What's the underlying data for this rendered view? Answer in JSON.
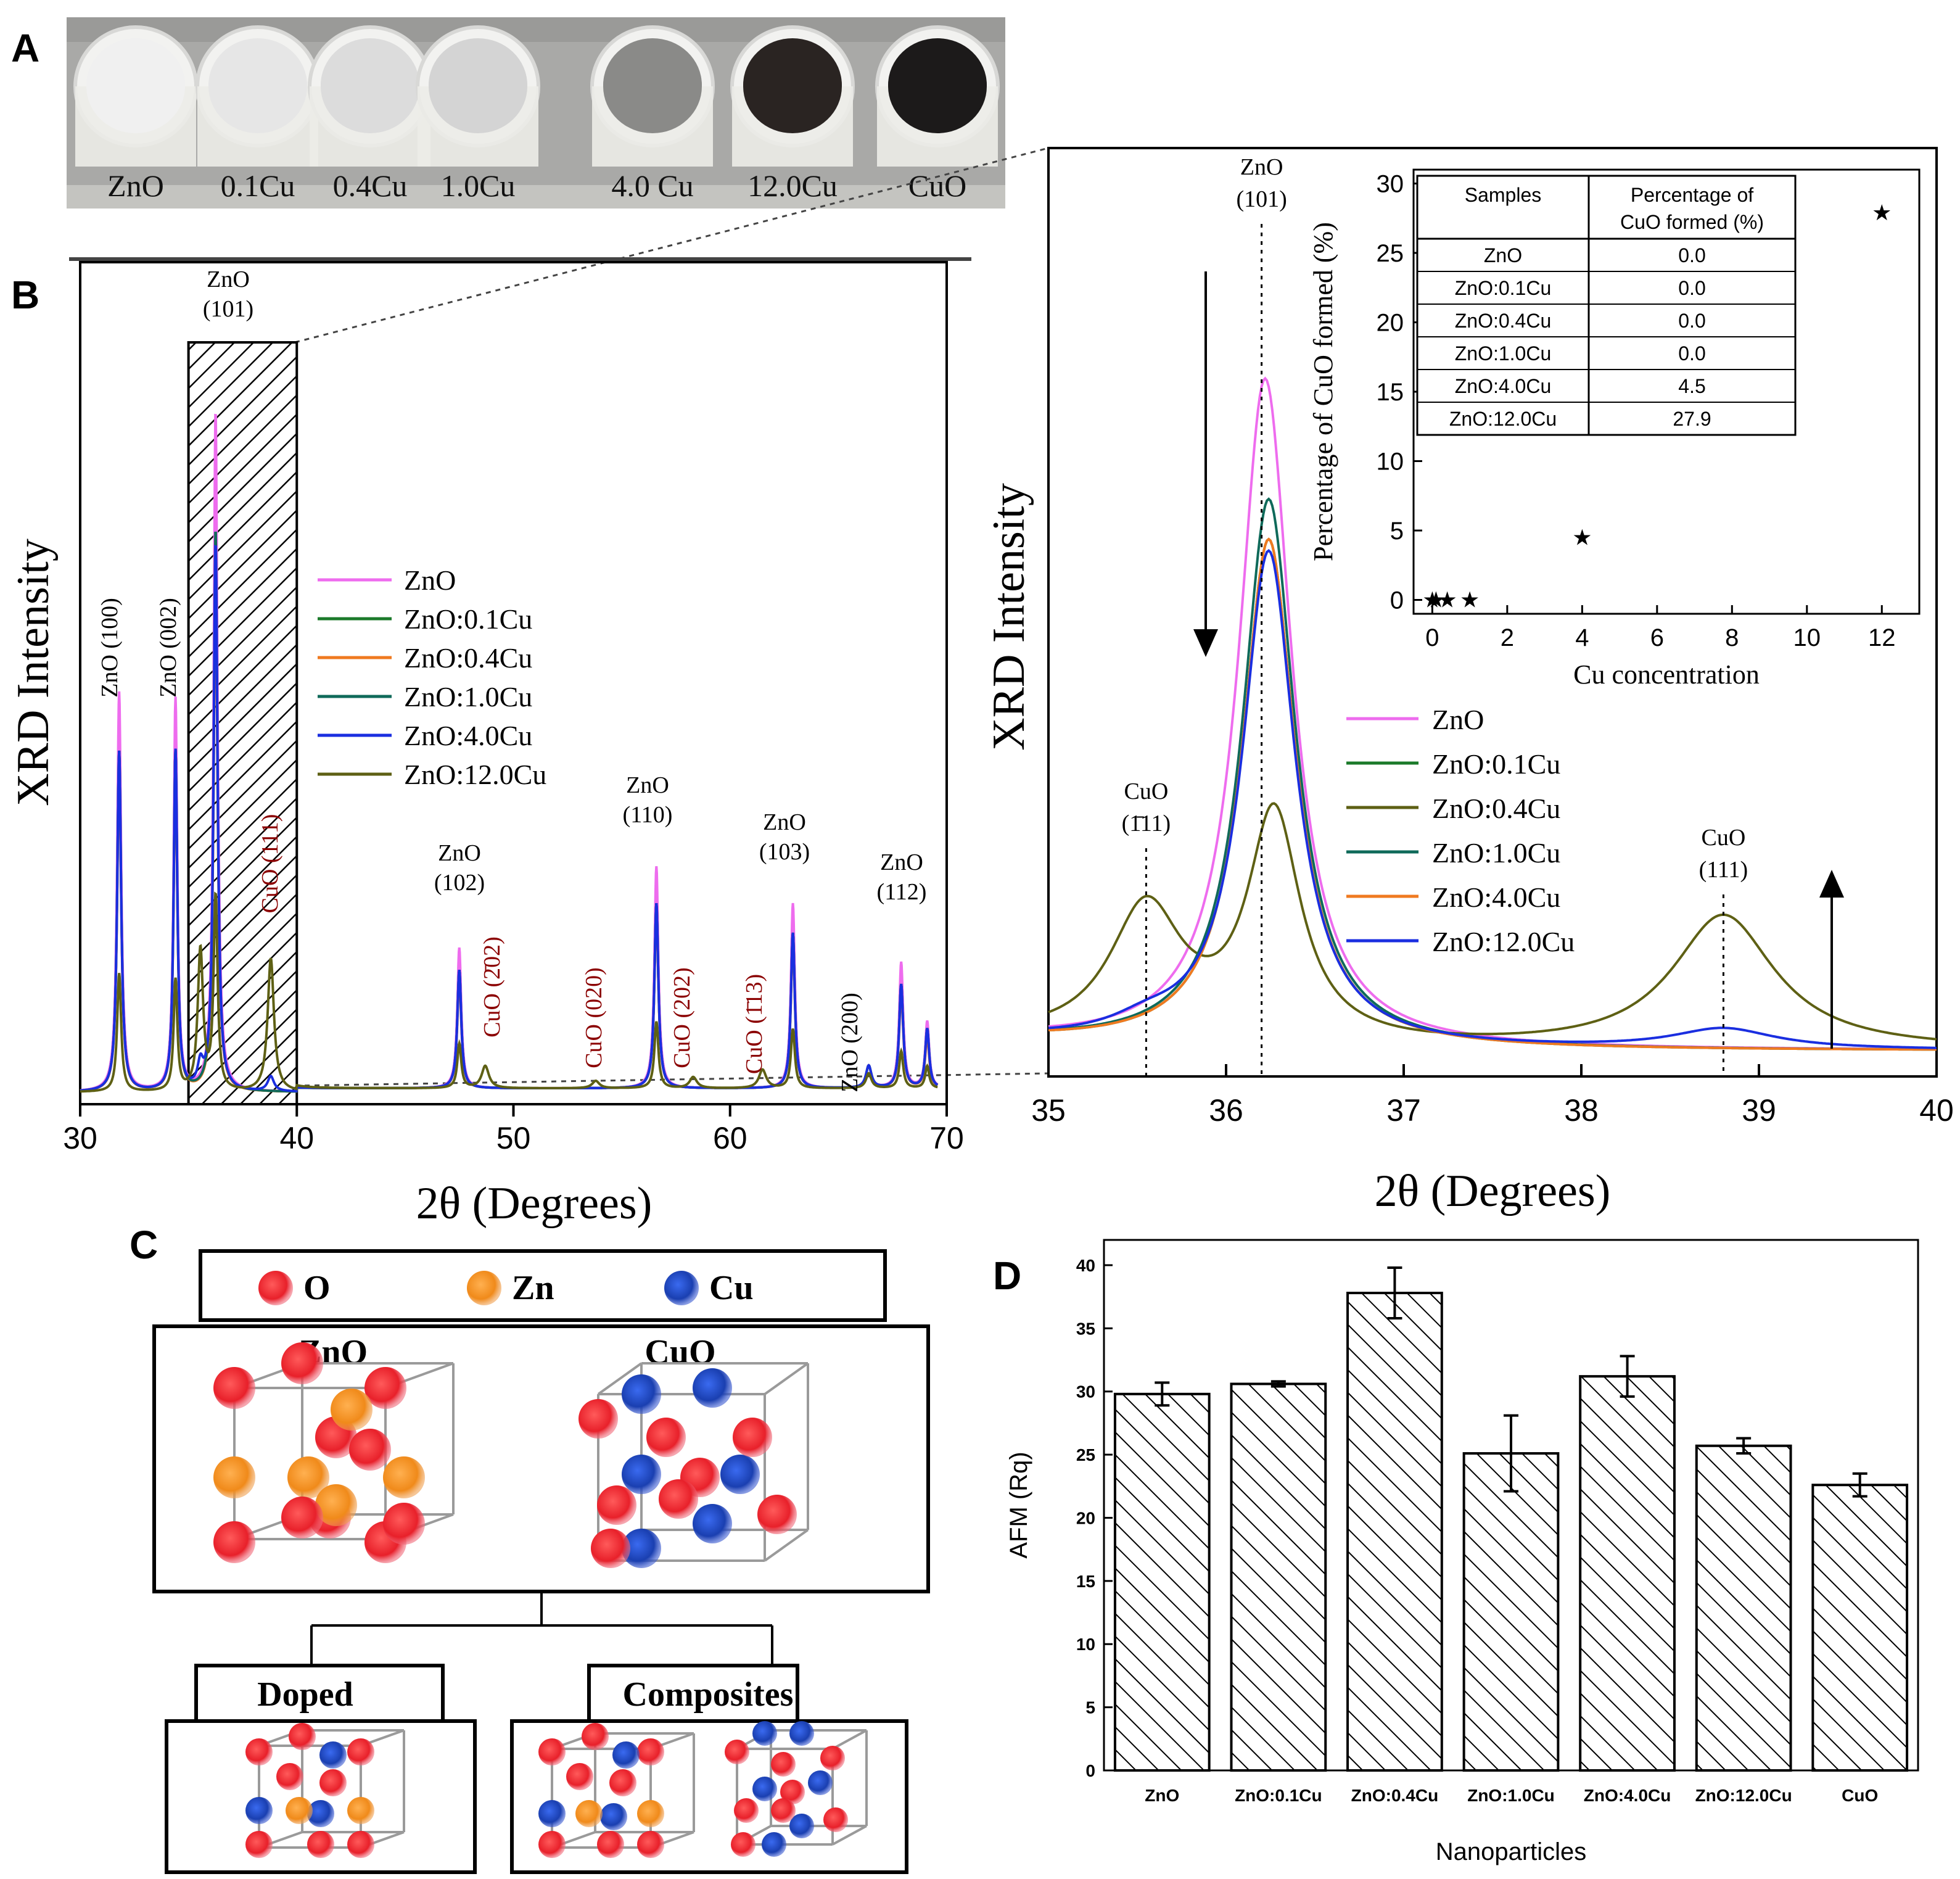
{
  "panel_labels": [
    "A",
    "B",
    "C",
    "D"
  ],
  "photo": {
    "samples": [
      {
        "label": "ZnO",
        "color": "#f0f0f0"
      },
      {
        "label": "0.1Cu",
        "color": "#e6e6e6"
      },
      {
        "label": "0.4Cu",
        "color": "#dcdcdc"
      },
      {
        "label": "1.0Cu",
        "color": "#d4d4d4"
      },
      {
        "label": "4.0 Cu",
        "color": "#8a8a88"
      },
      {
        "label": "12.0Cu",
        "color": "#2a2422"
      },
      {
        "label": "CuO",
        "color": "#1c1a1a"
      }
    ]
  },
  "lattice": {
    "legend": [
      {
        "symbol": "O",
        "color": "#e8202a"
      },
      {
        "symbol": "Zn",
        "color": "#f08a1a"
      },
      {
        "symbol": "Cu",
        "color": "#1a3fb0"
      }
    ],
    "structures": [
      "ZnO",
      "CuO"
    ],
    "categories": [
      "Doped",
      "Composites"
    ]
  },
  "chart_data": [
    {
      "type": "line",
      "title": "",
      "xlabel": "2θ (Degrees)",
      "ylabel": "XRD Intensity",
      "xlim": [
        30,
        70
      ],
      "xticks": [
        30,
        40,
        50,
        60,
        70
      ],
      "highlight_box": {
        "x": [
          35,
          40
        ]
      },
      "series": [
        {
          "name": "ZnO",
          "color": "#ee6cee"
        },
        {
          "name": "ZnO:0.1Cu",
          "color": "#1b7a2a"
        },
        {
          "name": "ZnO:0.4Cu",
          "color": "#f07a20"
        },
        {
          "name": "ZnO:1.0Cu",
          "color": "#0f6a5a"
        },
        {
          "name": "ZnO:4.0Cu",
          "color": "#1a2ee0"
        },
        {
          "name": "ZnO:12.0Cu",
          "color": "#5e6014"
        }
      ],
      "peaks": [
        {
          "x": 31.8,
          "h": [
            0.54,
            0.46,
            0.44,
            0.46,
            0.46,
            0.16
          ],
          "w": 0.22,
          "label": "ZnO (100)",
          "color": "black",
          "vertical": true
        },
        {
          "x": 34.4,
          "h": [
            0.53,
            0.46,
            0.44,
            0.46,
            0.46,
            0.15
          ],
          "w": 0.2,
          "label": "ZnO (002)",
          "color": "black",
          "vertical": true
        },
        {
          "x": 36.25,
          "h": [
            0.92,
            0.72,
            0.7,
            0.76,
            0.74,
            0.26
          ],
          "w": 0.22,
          "label": "ZnO\n(101)",
          "color": "black",
          "vertical": false
        },
        {
          "x": 35.55,
          "h": [
            0,
            0,
            0,
            0,
            0.03,
            0.19
          ],
          "w": 0.3,
          "label": "",
          "color": "black",
          "vertical": false
        },
        {
          "x": 38.8,
          "h": [
            0,
            0,
            0,
            0,
            0.02,
            0.18
          ],
          "w": 0.35,
          "label": "CuO (111)",
          "color": "darkred",
          "vertical": true
        },
        {
          "x": 47.5,
          "h": [
            0.19,
            0.16,
            0.15,
            0.16,
            0.16,
            0.06
          ],
          "w": 0.22,
          "label": "ZnO\n(102)",
          "color": "black",
          "vertical": false
        },
        {
          "x": 48.7,
          "h": [
            0,
            0,
            0,
            0,
            0,
            0.03
          ],
          "w": 0.4,
          "label": "CuO (2̄02)",
          "color": "darkred",
          "vertical": true
        },
        {
          "x": 53.8,
          "h": [
            0,
            0,
            0,
            0,
            0,
            0.01
          ],
          "w": 0.4,
          "label": "CuO (020)",
          "color": "darkred",
          "vertical": true
        },
        {
          "x": 56.6,
          "h": [
            0.3,
            0.25,
            0.24,
            0.25,
            0.25,
            0.09
          ],
          "w": 0.22,
          "label": "ZnO\n(110)",
          "color": "black",
          "vertical": false
        },
        {
          "x": 58.3,
          "h": [
            0,
            0,
            0,
            0,
            0,
            0.015
          ],
          "w": 0.4,
          "label": "CuO (202)",
          "color": "darkred",
          "vertical": true
        },
        {
          "x": 61.5,
          "h": [
            0,
            0,
            0,
            0,
            0,
            0.025
          ],
          "w": 0.4,
          "label": "CuO (1̄13)",
          "color": "darkred",
          "vertical": true
        },
        {
          "x": 62.9,
          "h": [
            0.25,
            0.21,
            0.2,
            0.21,
            0.21,
            0.08
          ],
          "w": 0.22,
          "label": "ZnO\n(103)",
          "color": "black",
          "vertical": false
        },
        {
          "x": 66.4,
          "h": [
            0.03,
            0.03,
            0.03,
            0.03,
            0.03,
            0.02
          ],
          "w": 0.3,
          "label": "ZnO (200)",
          "color": "black",
          "vertical": true
        },
        {
          "x": 67.9,
          "h": [
            0.17,
            0.14,
            0.13,
            0.14,
            0.14,
            0.05
          ],
          "w": 0.22,
          "label": "ZnO\n(112)",
          "color": "black",
          "vertical": false
        },
        {
          "x": 69.1,
          "h": [
            0.09,
            0.08,
            0.07,
            0.08,
            0.08,
            0.03
          ],
          "w": 0.22,
          "label": "",
          "color": "black",
          "vertical": false
        }
      ]
    },
    {
      "type": "line",
      "title": "",
      "xlabel": "2θ (Degrees)",
      "ylabel": "XRD Intensity",
      "xlim": [
        35,
        40
      ],
      "xticks": [
        35,
        36,
        37,
        38,
        39,
        40
      ],
      "series": [
        {
          "name": "ZnO",
          "color": "#ee6cee",
          "zno_peak": 1.0,
          "cuo1": 0.0,
          "cuo2": 0.0,
          "shift": 0.0
        },
        {
          "name": "ZnO:0.1Cu",
          "color": "#1b7a2a",
          "zno_peak": 0.76,
          "cuo1": 0.0,
          "cuo2": 0.0,
          "shift": 0.02
        },
        {
          "name": "ZnO:0.4Cu",
          "color": "#5e6014",
          "zno_peak": 0.34,
          "cuo1": 0.2,
          "cuo2": 0.2,
          "shift": 0.05
        },
        {
          "name": "ZnO:1.0Cu",
          "color": "#0f6a5a",
          "zno_peak": 0.82,
          "cuo1": 0.0,
          "cuo2": 0.0,
          "shift": 0.02
        },
        {
          "name": "ZnO:4.0Cu",
          "color": "#f07a20",
          "zno_peak": 0.76,
          "cuo1": 0.0,
          "cuo2": 0.0,
          "shift": 0.02
        },
        {
          "name": "ZnO:12.0Cu",
          "color": "#1a2ee0",
          "zno_peak": 0.74,
          "cuo1": 0.02,
          "cuo2": 0.03,
          "shift": 0.02
        }
      ],
      "peak_labels": [
        {
          "x": 36.2,
          "label": "ZnO\n(101)"
        },
        {
          "x": 35.55,
          "label": "CuO\n(1̄11)"
        },
        {
          "x": 38.8,
          "label": "CuO\n(111)"
        }
      ]
    },
    {
      "type": "scatter",
      "title": "",
      "xlabel": "Cu concentration",
      "ylabel": "Percentage of CuO formed (%)",
      "xlim": [
        -0.5,
        13
      ],
      "ylim": [
        -1,
        31
      ],
      "xticks": [
        0,
        2,
        4,
        6,
        8,
        10,
        12
      ],
      "yticks": [
        0,
        5,
        10,
        15,
        20,
        25,
        30
      ],
      "x": [
        0,
        0.1,
        0.4,
        1.0,
        4.0,
        12.0
      ],
      "y": [
        0.0,
        0.0,
        0.0,
        0.0,
        4.5,
        27.9
      ],
      "table": {
        "headers": [
          "Samples",
          "Percentage of\nCuO formed (%)"
        ],
        "rows": [
          [
            "ZnO",
            "0.0"
          ],
          [
            "ZnO:0.1Cu",
            "0.0"
          ],
          [
            "ZnO:0.4Cu",
            "0.0"
          ],
          [
            "ZnO:1.0Cu",
            "0.0"
          ],
          [
            "ZnO:4.0Cu",
            "4.5"
          ],
          [
            "ZnO:12.0Cu",
            "27.9"
          ]
        ]
      }
    },
    {
      "type": "bar",
      "title": "",
      "xlabel": "Nanoparticles",
      "ylabel": "AFM (Rq)",
      "ylim": [
        0,
        42
      ],
      "yticks": [
        0,
        5,
        10,
        15,
        20,
        25,
        30,
        35,
        40
      ],
      "categories": [
        "ZnO",
        "ZnO:0.1Cu",
        "ZnO:0.4Cu",
        "ZnO:1.0Cu",
        "ZnO:4.0Cu",
        "ZnO:12.0Cu",
        "CuO"
      ],
      "values": [
        29.8,
        30.6,
        37.8,
        25.1,
        31.2,
        25.7,
        22.6
      ],
      "errors": [
        0.9,
        0.2,
        2.0,
        3.0,
        1.6,
        0.6,
        0.9
      ]
    }
  ]
}
